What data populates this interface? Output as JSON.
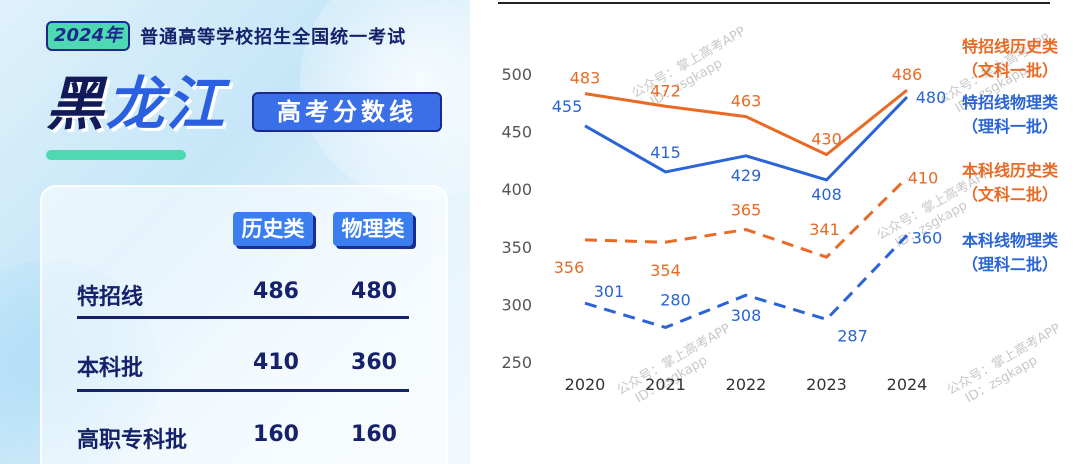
{
  "left_panel": {
    "year_tag": "2024年",
    "exam_title": "普通高等学校招生全国统一考试",
    "province_char1": "黑",
    "province_rest": "龙江",
    "banner": "高考分数线",
    "table": {
      "columns": [
        "历史类",
        "物理类"
      ],
      "rows": [
        {
          "label": "特招线",
          "history": "486",
          "physics": "480"
        },
        {
          "label": "本科批",
          "history": "410",
          "physics": "360"
        },
        {
          "label": "高职专科批",
          "history": "160",
          "physics": "160"
        }
      ]
    }
  },
  "chart_data": {
    "type": "line",
    "x": [
      2020,
      2021,
      2022,
      2023,
      2024
    ],
    "ylim": [
      250,
      500
    ],
    "yticks": [
      250,
      300,
      350,
      400,
      450,
      500
    ],
    "grid": false,
    "legend_placement": "right",
    "series": [
      {
        "name": "特招线历史类",
        "name_sub": "（文科一批）",
        "values": [
          483,
          472,
          463,
          430,
          486
        ],
        "color": "#e86a24",
        "dashed": false
      },
      {
        "name": "特招线物理类",
        "name_sub": "（理科一批）",
        "values": [
          455,
          415,
          429,
          408,
          480
        ],
        "color": "#2a64d6",
        "dashed": false
      },
      {
        "name": "本科线历史类",
        "name_sub": "（文科二批）",
        "values": [
          356,
          354,
          365,
          341,
          410
        ],
        "color": "#e86a24",
        "dashed": true
      },
      {
        "name": "本科线物理类",
        "name_sub": "（理科二批）",
        "values": [
          301,
          280,
          308,
          287,
          360
        ],
        "color": "#2a64d6",
        "dashed": true
      }
    ],
    "watermark": [
      "公众号：掌上高考APP",
      "ID：zsgkapp"
    ]
  }
}
